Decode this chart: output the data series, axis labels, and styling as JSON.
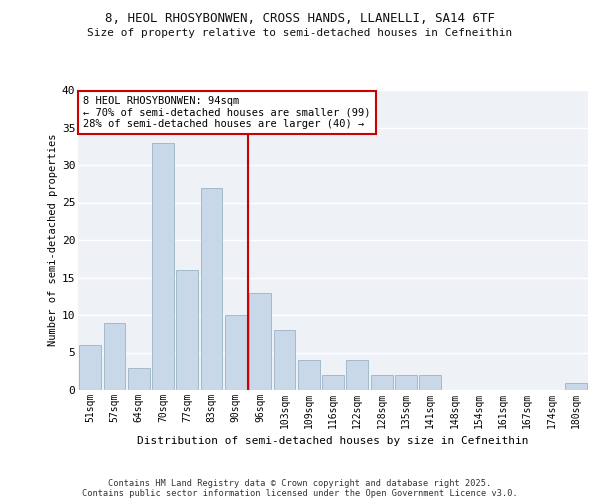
{
  "title1": "8, HEOL RHOSYBONWEN, CROSS HANDS, LLANELLI, SA14 6TF",
  "title2": "Size of property relative to semi-detached houses in Cefneithin",
  "xlabel": "Distribution of semi-detached houses by size in Cefneithin",
  "ylabel": "Number of semi-detached properties",
  "categories": [
    "51sqm",
    "57sqm",
    "64sqm",
    "70sqm",
    "77sqm",
    "83sqm",
    "90sqm",
    "96sqm",
    "103sqm",
    "109sqm",
    "116sqm",
    "122sqm",
    "128sqm",
    "135sqm",
    "141sqm",
    "148sqm",
    "154sqm",
    "161sqm",
    "167sqm",
    "174sqm",
    "180sqm"
  ],
  "values": [
    6,
    9,
    3,
    33,
    16,
    27,
    10,
    13,
    8,
    4,
    2,
    4,
    2,
    2,
    2,
    0,
    0,
    0,
    0,
    0,
    1
  ],
  "bar_color": "#c8d8e8",
  "bar_edge_color": "#9ab4c8",
  "annotation_title": "8 HEOL RHOSYBONWEN: 94sqm",
  "annotation_line1": "← 70% of semi-detached houses are smaller (99)",
  "annotation_line2": "28% of semi-detached houses are larger (40) →",
  "annotation_box_color": "#ffffff",
  "annotation_box_edge_color": "#cc0000",
  "ylim": [
    0,
    40
  ],
  "yticks": [
    0,
    5,
    10,
    15,
    20,
    25,
    30,
    35,
    40
  ],
  "bg_color": "#eef2f7",
  "footnote1": "Contains HM Land Registry data © Crown copyright and database right 2025.",
  "footnote2": "Contains public sector information licensed under the Open Government Licence v3.0.",
  "vline_color": "#cc0000",
  "vline_index": 7
}
